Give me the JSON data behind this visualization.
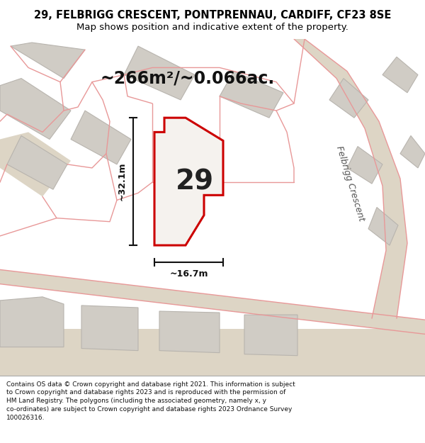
{
  "title_line1": "29, FELBRIGG CRESCENT, PONTPRENNAU, CARDIFF, CF23 8SE",
  "title_line2": "Map shows position and indicative extent of the property.",
  "area_text": "~266m²/~0.066ac.",
  "label_number": "29",
  "dim_width": "~16.7m",
  "dim_height": "~32.1m",
  "street_label": "Felbrigg Crescent",
  "footer_wrapped": "Contains OS data © Crown copyright and database right 2021. This information is subject\nto Crown copyright and database rights 2023 and is reproduced with the permission of\nHM Land Registry. The polygons (including the associated geometry, namely x, y\nco-ordinates) are subject to Crown copyright and database rights 2023 Ordnance Survey\n100026316.",
  "map_bg": "#ede8e0",
  "building_fill": "#d0ccc5",
  "building_stroke": "#b8b4ae",
  "plot_fill": "#f5f2ee",
  "plot_stroke": "#cc0000",
  "dim_line_color": "#111111",
  "title_bg": "#ffffff",
  "footer_bg": "#ffffff",
  "pink_line_color": "#e89898",
  "road_fill": "#ddd5c5"
}
